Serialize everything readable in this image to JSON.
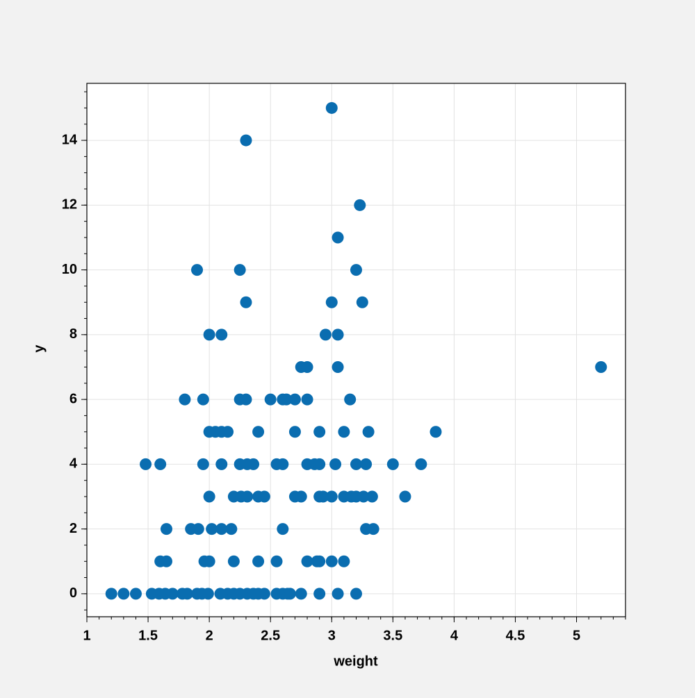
{
  "chart_data": {
    "type": "scatter",
    "xlabel": "weight",
    "ylabel": "y",
    "color": "#0a6db0",
    "grid": true,
    "x": [
      1.2,
      1.3,
      1.4,
      1.53,
      1.59,
      1.64,
      1.7,
      1.78,
      1.82,
      1.9,
      1.94,
      1.99,
      2.09,
      2.15,
      2.2,
      2.25,
      2.31,
      2.36,
      2.4,
      2.45,
      2.55,
      2.6,
      2.64,
      2.66,
      2.75,
      2.9,
      3.05,
      3.2,
      1.6,
      1.65,
      1.96,
      2.0,
      2.2,
      2.4,
      2.55,
      2.8,
      2.88,
      2.9,
      3.0,
      3.1,
      1.65,
      1.85,
      1.91,
      2.02,
      2.1,
      2.18,
      2.6,
      3.28,
      3.34,
      2.0,
      2.2,
      2.26,
      2.31,
      2.4,
      2.45,
      2.7,
      2.75,
      2.9,
      2.93,
      3.0,
      3.1,
      3.16,
      3.2,
      3.26,
      3.33,
      3.6,
      1.48,
      1.6,
      1.95,
      2.1,
      2.25,
      2.31,
      2.36,
      2.55,
      2.6,
      2.8,
      2.86,
      2.9,
      3.03,
      3.2,
      3.28,
      3.5,
      3.73,
      2.0,
      2.05,
      2.1,
      2.15,
      2.4,
      2.7,
      2.9,
      3.1,
      3.3,
      3.85,
      1.8,
      1.95,
      2.25,
      2.3,
      2.5,
      2.6,
      2.63,
      2.7,
      2.8,
      3.15,
      2.75,
      2.8,
      3.05,
      5.2,
      2.0,
      2.1,
      2.95,
      3.05,
      2.3,
      3.0,
      3.25,
      1.9,
      2.25,
      3.2,
      3.05,
      3.23,
      2.3,
      3.0
    ],
    "y": [
      0,
      0,
      0,
      0,
      0,
      0,
      0,
      0,
      0,
      0,
      0,
      0,
      0,
      0,
      0,
      0,
      0,
      0,
      0,
      0,
      0,
      0,
      0,
      0,
      0,
      0,
      0,
      0,
      1,
      1,
      1,
      1,
      1,
      1,
      1,
      1,
      1,
      1,
      1,
      1,
      2,
      2,
      2,
      2,
      2,
      2,
      2,
      2,
      2,
      3,
      3,
      3,
      3,
      3,
      3,
      3,
      3,
      3,
      3,
      3,
      3,
      3,
      3,
      3,
      3,
      3,
      4,
      4,
      4,
      4,
      4,
      4,
      4,
      4,
      4,
      4,
      4,
      4,
      4,
      4,
      4,
      4,
      4,
      5,
      5,
      5,
      5,
      5,
      5,
      5,
      5,
      5,
      5,
      6,
      6,
      6,
      6,
      6,
      6,
      6,
      6,
      6,
      6,
      7,
      7,
      7,
      7,
      8,
      8,
      8,
      8,
      9,
      9,
      9,
      10,
      10,
      10,
      11,
      12,
      14,
      15
    ],
    "xlim": [
      1,
      5.4
    ],
    "ylim": [
      -0.71,
      15.76
    ],
    "xticks": [
      1,
      1.5,
      2,
      2.5,
      3,
      3.5,
      4,
      4.5,
      5
    ],
    "yticks": [
      0,
      2,
      4,
      6,
      8,
      10,
      12,
      14
    ]
  }
}
